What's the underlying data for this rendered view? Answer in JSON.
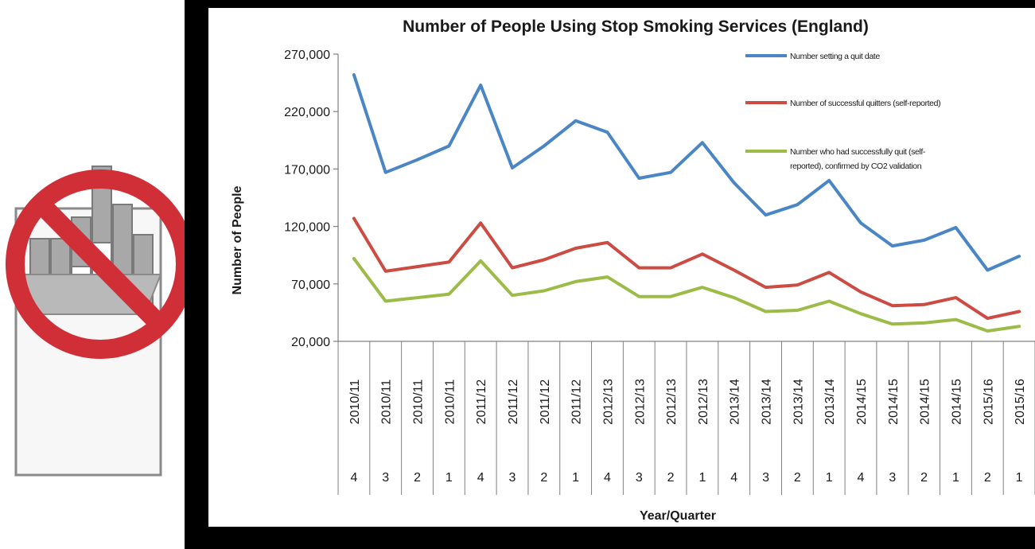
{
  "chart_data": {
    "type": "line",
    "title": "Number of People Using Stop Smoking Services (England)",
    "xlabel": "Year/Quarter",
    "ylabel": "Number of People",
    "ylim": [
      20000,
      270000
    ],
    "yticks": [
      "20,000",
      "70,000",
      "120,000",
      "170,000",
      "220,000",
      "270,000"
    ],
    "ytick_values": [
      20000,
      70000,
      120000,
      170000,
      220000,
      270000
    ],
    "categories": [
      {
        "year": "2010/11",
        "quarter": "4"
      },
      {
        "year": "2010/11",
        "quarter": "3"
      },
      {
        "year": "2010/11",
        "quarter": "2"
      },
      {
        "year": "2010/11",
        "quarter": "1"
      },
      {
        "year": "2011/12",
        "quarter": "4"
      },
      {
        "year": "2011/12",
        "quarter": "3"
      },
      {
        "year": "2011/12",
        "quarter": "2"
      },
      {
        "year": "2011/12",
        "quarter": "1"
      },
      {
        "year": "2012/13",
        "quarter": "4"
      },
      {
        "year": "2012/13",
        "quarter": "3"
      },
      {
        "year": "2012/13",
        "quarter": "2"
      },
      {
        "year": "2012/13",
        "quarter": "1"
      },
      {
        "year": "2013/14",
        "quarter": "4"
      },
      {
        "year": "2013/14",
        "quarter": "3"
      },
      {
        "year": "2013/14",
        "quarter": "2"
      },
      {
        "year": "2013/14",
        "quarter": "1"
      },
      {
        "year": "2014/15",
        "quarter": "4"
      },
      {
        "year": "2014/15",
        "quarter": "3"
      },
      {
        "year": "2014/15",
        "quarter": "2"
      },
      {
        "year": "2014/15",
        "quarter": "1"
      },
      {
        "year": "2015/16",
        "quarter": "2"
      },
      {
        "year": "2015/16",
        "quarter": "1"
      }
    ],
    "series": [
      {
        "name": "Number setting a quit date",
        "color": "#4a86c6",
        "values": [
          252000,
          167000,
          178000,
          190000,
          243000,
          171000,
          190000,
          212000,
          202000,
          162000,
          167000,
          193000,
          158000,
          130000,
          139000,
          160000,
          123000,
          103000,
          108000,
          119000,
          82000,
          94000
        ]
      },
      {
        "name": "Number of successful quitters (self-reported)",
        "color": "#cc4b42",
        "values": [
          127000,
          81000,
          85000,
          89000,
          123000,
          84000,
          91000,
          101000,
          106000,
          84000,
          84000,
          96000,
          82000,
          67000,
          69000,
          80000,
          63000,
          51000,
          52000,
          58000,
          40000,
          46000
        ]
      },
      {
        "name": "Number who had successfully quit (self-reported), confirmed by CO2 validation",
        "legend_lines": [
          "Number who had successfully quit (self-",
          "reported), confirmed by CO2 validation"
        ],
        "color": "#9cbb47",
        "values": [
          92000,
          55000,
          58000,
          61000,
          90000,
          60000,
          64000,
          72000,
          76000,
          59000,
          59000,
          67000,
          58000,
          46000,
          47000,
          55000,
          44000,
          35000,
          36000,
          39000,
          29000,
          33000
        ]
      }
    ],
    "grid": false,
    "legend": "top-right"
  },
  "illustration": {
    "icon": "no-smoking-cigarette-pack",
    "colors": {
      "prohibition": "#d12f38",
      "pack": "#8a8a8a",
      "cigarette": "#9a9a9a"
    }
  }
}
